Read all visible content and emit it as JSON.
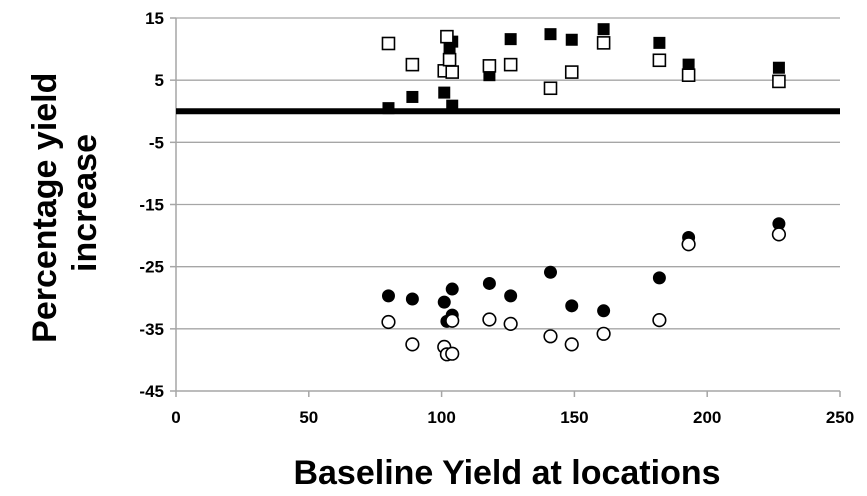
{
  "chart_data": {
    "type": "scatter",
    "title": "",
    "xlabel": "Baseline Yield at locations",
    "ylabel_lines": [
      "Percentage yield",
      "increase"
    ],
    "xlim": [
      0,
      250
    ],
    "ylim": [
      -45,
      15
    ],
    "x_ticks": [
      0,
      50,
      100,
      150,
      200,
      250
    ],
    "y_ticks": [
      15,
      5,
      -5,
      -15,
      -25,
      -35,
      -45
    ],
    "grid": "horizontal",
    "legend": "none",
    "reference_line": {
      "y": 0,
      "color": "#000000"
    },
    "colors": {
      "grid": "#a6a6a6",
      "marker": "#000000",
      "background": "#ffffff"
    },
    "series": [
      {
        "marker": "filled-square",
        "points": [
          [
            80,
            0.5
          ],
          [
            89,
            2.3
          ],
          [
            101,
            3.0
          ],
          [
            103,
            10.2
          ],
          [
            104,
            0.9
          ],
          [
            104,
            11.2
          ],
          [
            118,
            5.8
          ],
          [
            126,
            11.6
          ],
          [
            141,
            12.4
          ],
          [
            149,
            11.5
          ],
          [
            161,
            13.2
          ],
          [
            182,
            11.0
          ],
          [
            193,
            7.5
          ],
          [
            227,
            7.0
          ]
        ]
      },
      {
        "marker": "open-square",
        "points": [
          [
            80,
            10.9
          ],
          [
            89,
            7.5
          ],
          [
            101,
            6.5
          ],
          [
            102,
            12.0
          ],
          [
            103,
            8.3
          ],
          [
            104,
            6.3
          ],
          [
            118,
            7.3
          ],
          [
            126,
            7.5
          ],
          [
            141,
            3.7
          ],
          [
            149,
            6.3
          ],
          [
            161,
            11.0
          ],
          [
            182,
            8.2
          ],
          [
            193,
            5.8
          ],
          [
            227,
            4.8
          ]
        ]
      },
      {
        "marker": "filled-circle",
        "points": [
          [
            80,
            -29.7
          ],
          [
            89,
            -30.2
          ],
          [
            101,
            -30.7
          ],
          [
            102,
            -33.8
          ],
          [
            104,
            -28.6
          ],
          [
            104,
            -32.8
          ],
          [
            118,
            -27.7
          ],
          [
            126,
            -29.7
          ],
          [
            141,
            -25.9
          ],
          [
            149,
            -31.3
          ],
          [
            161,
            -32.1
          ],
          [
            182,
            -26.8
          ],
          [
            193,
            -20.3
          ],
          [
            227,
            -18.1
          ]
        ]
      },
      {
        "marker": "open-circle",
        "points": [
          [
            80,
            -33.9
          ],
          [
            89,
            -37.5
          ],
          [
            101,
            -37.9
          ],
          [
            102,
            -39.1
          ],
          [
            104,
            -39.0
          ],
          [
            104,
            -33.7
          ],
          [
            118,
            -33.5
          ],
          [
            126,
            -34.2
          ],
          [
            141,
            -36.2
          ],
          [
            149,
            -37.5
          ],
          [
            161,
            -35.8
          ],
          [
            182,
            -33.6
          ],
          [
            193,
            -21.4
          ],
          [
            227,
            -19.8
          ]
        ]
      }
    ]
  }
}
